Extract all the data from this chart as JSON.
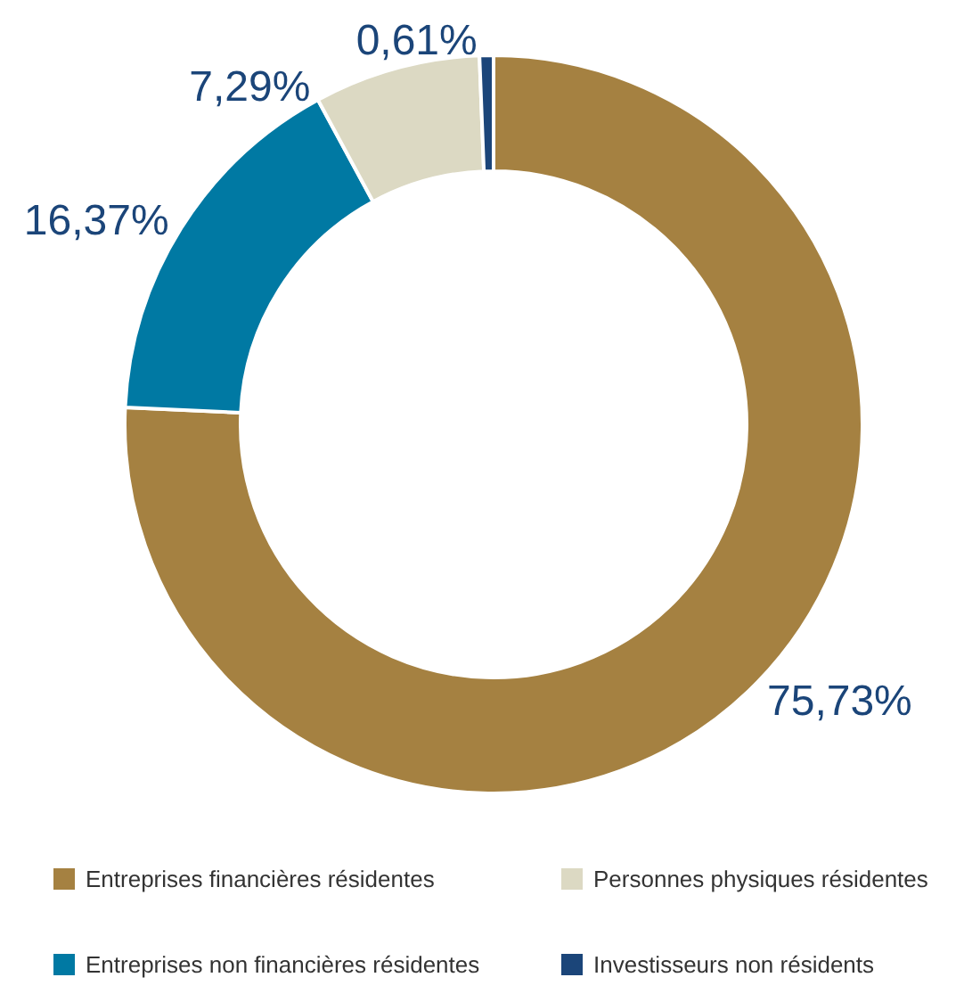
{
  "chart_data": {
    "type": "donut",
    "categories": [
      "Entreprises financières résidentes",
      "Entreprises non financières résidentes",
      "Personnes physiques résidentes",
      "Investisseurs non résidents"
    ],
    "values": [
      75.73,
      16.37,
      7.29,
      0.61
    ],
    "colors": [
      "#a58141",
      "#0079a3",
      "#dcd9c3",
      "#1b4579"
    ],
    "value_labels": [
      "75,73%",
      "16,37%",
      "7,29%",
      "0,61%"
    ],
    "legend": "bottom"
  }
}
